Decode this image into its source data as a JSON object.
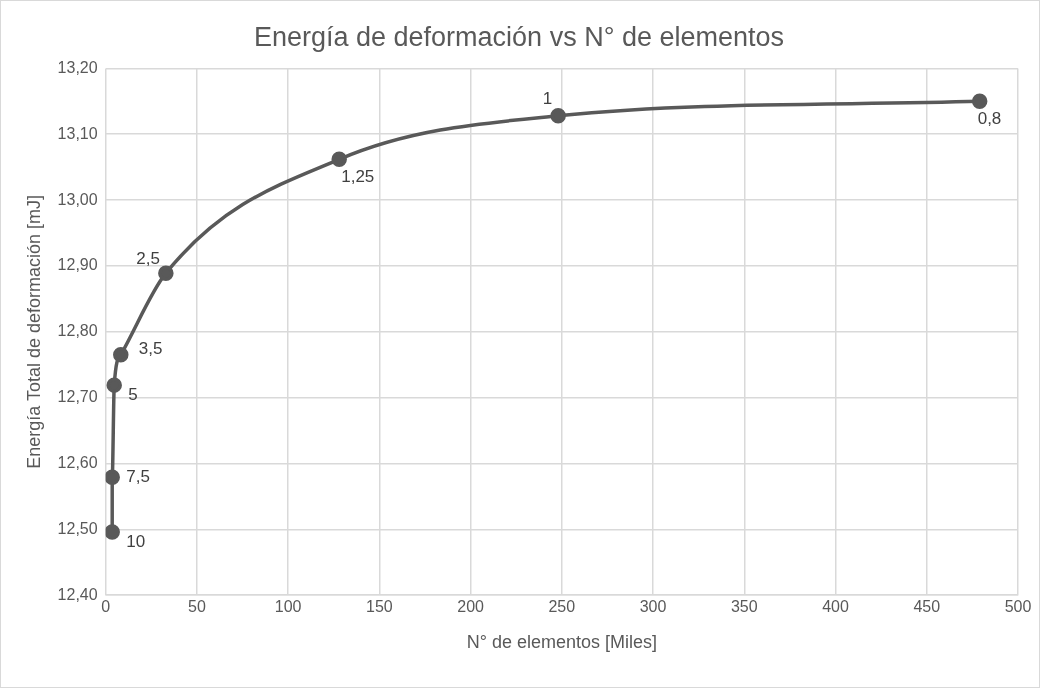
{
  "chart_data": {
    "type": "line",
    "title": "Energía de deformación vs N° de elementos",
    "xlabel": "N° de elementos [Miles]",
    "ylabel": "Energía Total de deformación [mJ]",
    "series": [
      {
        "color": "#595959",
        "x": [
          3.6,
          3.6,
          4.7,
          8.3,
          33,
          128,
          248,
          479
        ],
        "values": [
          12.496,
          12.579,
          12.719,
          12.765,
          12.889,
          13.062,
          13.128,
          13.15
        ]
      }
    ],
    "annotations": [
      {
        "text": "10",
        "x": 3.6,
        "y": 12.496
      },
      {
        "text": "7,5",
        "x": 3.6,
        "y": 12.579
      },
      {
        "text": "5",
        "x": 4.7,
        "y": 12.719
      },
      {
        "text": "3,5",
        "x": 8.3,
        "y": 12.765
      },
      {
        "text": "2,5",
        "x": 33,
        "y": 12.889
      },
      {
        "text": "1,25",
        "x": 128,
        "y": 13.062
      },
      {
        "text": "1",
        "x": 248,
        "y": 13.128
      },
      {
        "text": "0,8",
        "x": 479,
        "y": 13.15
      }
    ],
    "xlim": [
      0,
      500
    ],
    "xticks": [
      0,
      50,
      100,
      150,
      200,
      250,
      300,
      350,
      400,
      450,
      500
    ],
    "ylim": [
      12.4,
      13.2
    ],
    "yticks": [
      {
        "value": 12.4,
        "label": "12,40"
      },
      {
        "value": 12.5,
        "label": "12,50"
      },
      {
        "value": 12.6,
        "label": "12,60"
      },
      {
        "value": 12.7,
        "label": "12,70"
      },
      {
        "value": 12.8,
        "label": "12,80"
      },
      {
        "value": 12.9,
        "label": "12,90"
      },
      {
        "value": 13.0,
        "label": "13,00"
      },
      {
        "value": 13.1,
        "label": "13,10"
      },
      {
        "value": 13.2,
        "label": "13,20"
      }
    ],
    "grid": true,
    "legend": false,
    "marker": "circle",
    "line_style": "solid"
  }
}
